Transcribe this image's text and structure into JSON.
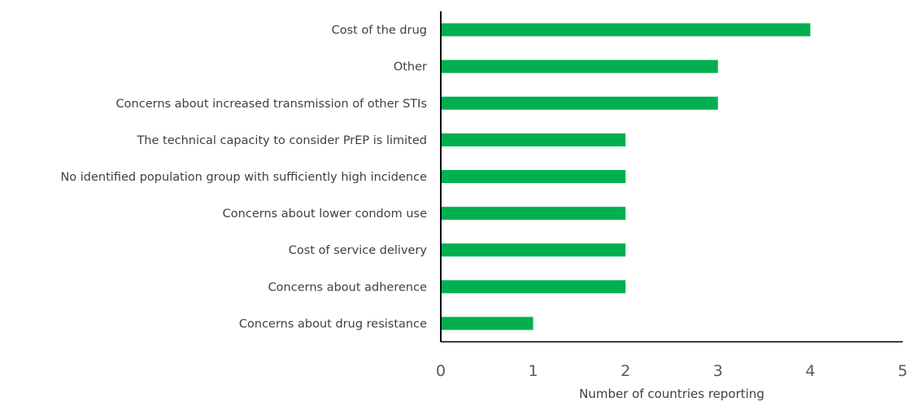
{
  "chart_data": {
    "type": "bar",
    "orientation": "horizontal",
    "title": "",
    "xlabel": "Number of countries reporting",
    "ylabel": "",
    "xlim": [
      0,
      5
    ],
    "xticks": [
      "0",
      "1",
      "2",
      "3",
      "4",
      "5"
    ],
    "grid": false,
    "legend": "none",
    "bar_color": "#00B050",
    "categories": [
      "Cost of the drug",
      "Other",
      "Concerns about increased transmission of other STIs",
      "The technical capacity to consider PrEP is limited",
      "No identified population group with sufficiently high incidence",
      "Concerns about lower condom use",
      "Cost of service delivery",
      "Concerns about adherence",
      "Concerns about drug resistance"
    ],
    "values": [
      4,
      3,
      3,
      2,
      2,
      2,
      2,
      2,
      1
    ]
  }
}
